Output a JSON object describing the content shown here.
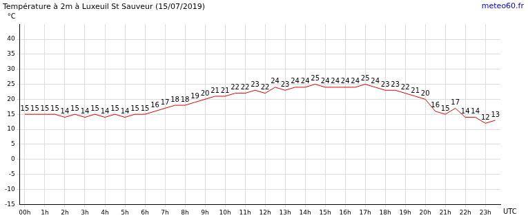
{
  "chart_data": {
    "type": "line",
    "title": "Température à 2m à Luxeuil St Sauveur (15/07/2019)",
    "source": "meteo60.fr",
    "y_label": "°C",
    "x_label": "UTC",
    "categories": [
      "00h",
      null,
      "1h",
      null,
      "2h",
      null,
      "3h",
      null,
      "4h",
      null,
      "5h",
      null,
      "6h",
      null,
      "7h",
      null,
      "8h",
      null,
      "9h",
      null,
      "10h",
      null,
      "11h",
      null,
      "12h",
      null,
      "13h",
      null,
      "14h",
      null,
      "15h",
      null,
      "16h",
      null,
      "17h",
      null,
      "18h",
      null,
      "19h",
      null,
      "20h",
      null,
      "21h",
      null,
      "22h",
      null,
      "23h",
      null
    ],
    "values": [
      15,
      15,
      15,
      15,
      14,
      15,
      14,
      15,
      14,
      15,
      14,
      15,
      15,
      16,
      17,
      18,
      18,
      19,
      20,
      21,
      21,
      22,
      22,
      23,
      22,
      24,
      23,
      24,
      24,
      25,
      24,
      24,
      24,
      24,
      25,
      24,
      23,
      23,
      22,
      21,
      20,
      16,
      15,
      17,
      14,
      14,
      12,
      13
    ],
    "color": "#dd0000",
    "ylim": [
      -15,
      45
    ],
    "yticks": [
      -15,
      -10,
      -5,
      0,
      5,
      10,
      15,
      20,
      25,
      30,
      35,
      40
    ],
    "grid": true,
    "data_labels": true
  }
}
